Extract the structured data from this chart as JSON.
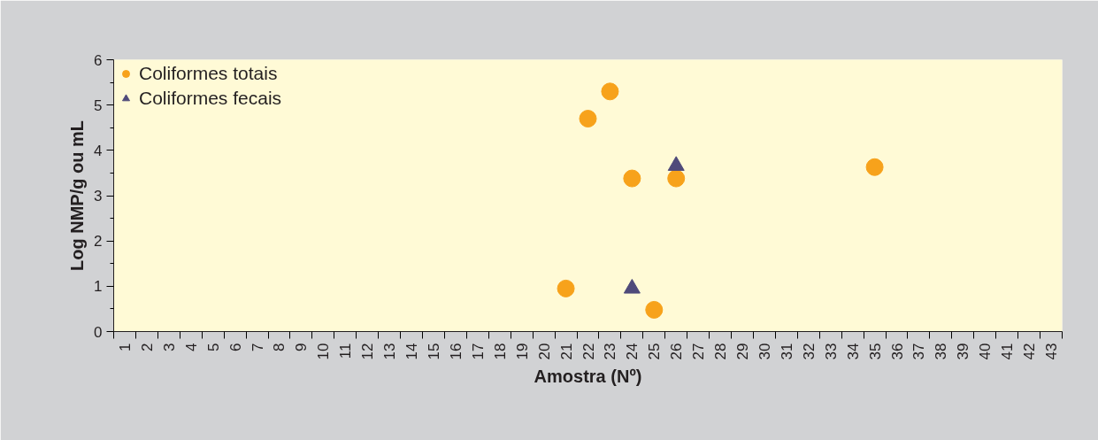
{
  "chart_data": {
    "type": "scatter",
    "xlabel": "Amostra (Nº)",
    "ylabel": "Log NMP/g ou mL",
    "categories": [
      "1",
      "2",
      "3",
      "4",
      "5",
      "6",
      "7",
      "8",
      "9",
      "10",
      "11",
      "12",
      "13",
      "14",
      "15",
      "16",
      "17",
      "18",
      "19",
      "20",
      "21",
      "22",
      "23",
      "24",
      "25",
      "26",
      "27",
      "28",
      "29",
      "30",
      "31",
      "32",
      "33",
      "34",
      "35",
      "36",
      "37",
      "38",
      "39",
      "40",
      "41",
      "42",
      "43"
    ],
    "series": [
      {
        "name": "Coliformes totais",
        "color": "#f7a21b",
        "marker": "circle",
        "values": [
          null,
          null,
          null,
          null,
          null,
          null,
          null,
          null,
          null,
          null,
          null,
          null,
          null,
          null,
          null,
          null,
          null,
          null,
          null,
          null,
          0.95,
          4.7,
          5.3,
          3.38,
          0.48,
          3.38,
          null,
          null,
          null,
          null,
          null,
          null,
          null,
          null,
          3.63,
          null,
          null,
          null,
          null,
          null,
          null,
          null,
          null
        ]
      },
      {
        "name": "Coliformes fecais",
        "color": "#4f4a7a",
        "marker": "triangle",
        "values": [
          null,
          null,
          null,
          null,
          null,
          null,
          null,
          null,
          null,
          null,
          null,
          null,
          null,
          null,
          null,
          null,
          null,
          null,
          null,
          null,
          null,
          null,
          null,
          0.95,
          null,
          3.66,
          null,
          null,
          null,
          null,
          null,
          null,
          null,
          null,
          null,
          null,
          null,
          null,
          null,
          null,
          null,
          null,
          null
        ]
      }
    ],
    "ylim": [
      0,
      6
    ],
    "yticks": [
      0,
      1,
      2,
      3,
      4,
      5,
      6
    ],
    "grid": false,
    "legend": "top left"
  }
}
